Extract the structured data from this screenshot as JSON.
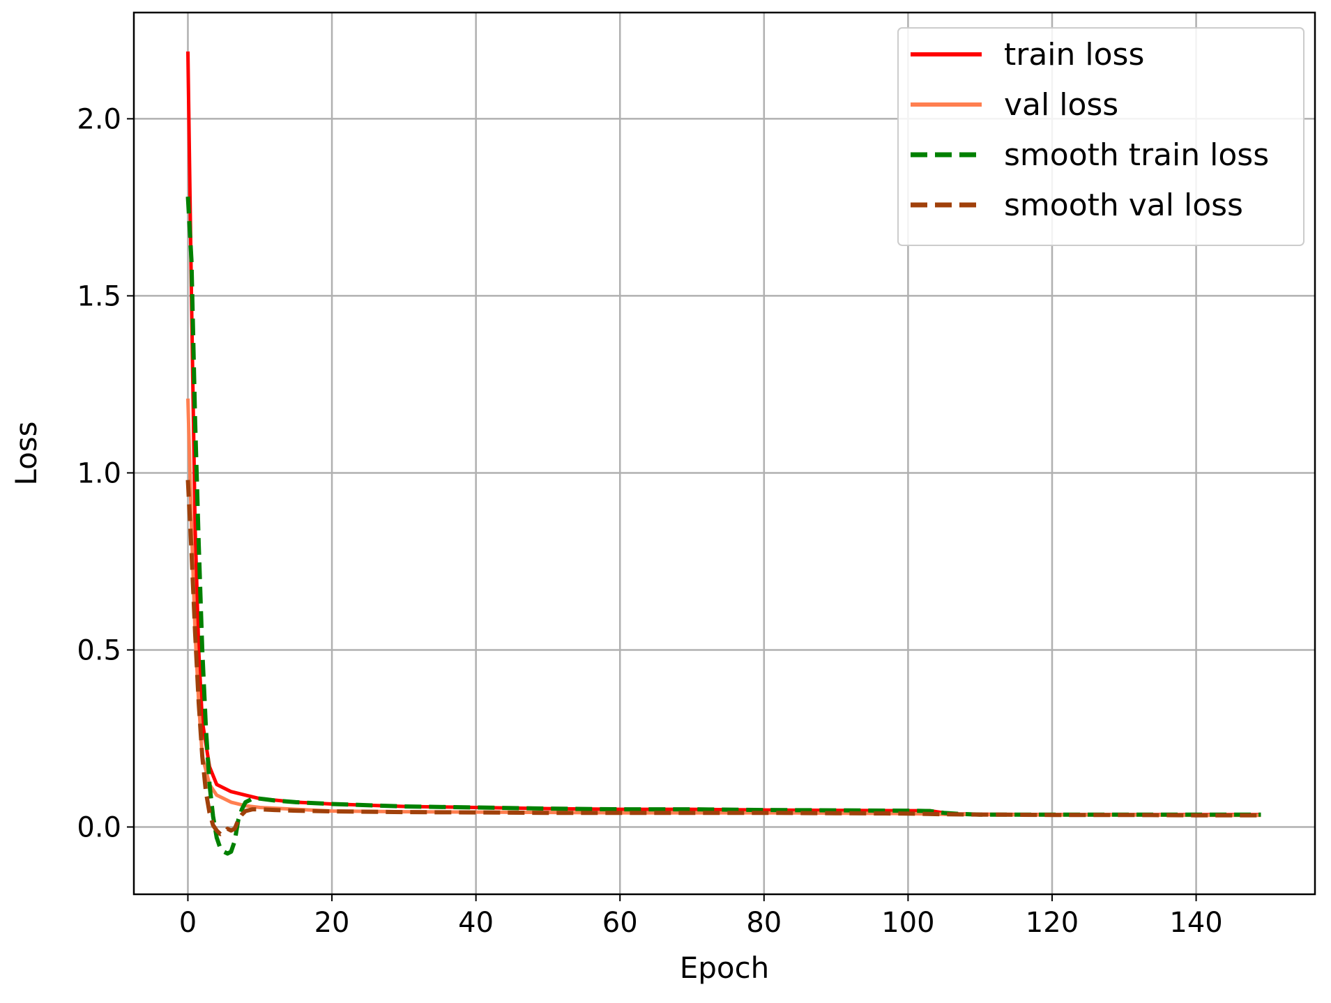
{
  "chart_data": {
    "type": "line",
    "title": "",
    "xlabel": "Epoch",
    "ylabel": "Loss",
    "xlim": [
      -7.5,
      156.5
    ],
    "ylim": [
      -0.19,
      2.3
    ],
    "xticks": [
      0,
      20,
      40,
      60,
      80,
      100,
      120,
      140
    ],
    "yticks": [
      0.0,
      0.5,
      1.0,
      1.5,
      2.0
    ],
    "xtick_labels": [
      "0",
      "20",
      "40",
      "60",
      "80",
      "100",
      "120",
      "140"
    ],
    "ytick_labels": [
      "0.0",
      "0.5",
      "1.0",
      "1.5",
      "2.0"
    ],
    "grid": true,
    "legend_position": "top-right",
    "series": [
      {
        "name": "train loss",
        "color": "#ff0000",
        "style": "solid",
        "x": [
          0,
          0.5,
          1,
          1.5,
          2,
          3,
          4,
          5,
          6,
          8,
          10,
          15,
          20,
          30,
          40,
          50,
          60,
          70,
          80,
          90,
          100,
          103,
          105,
          107,
          110,
          120,
          130,
          140,
          149
        ],
        "y": [
          2.19,
          1.5,
          0.85,
          0.5,
          0.3,
          0.17,
          0.12,
          0.11,
          0.1,
          0.09,
          0.08,
          0.07,
          0.065,
          0.058,
          0.055,
          0.052,
          0.05,
          0.05,
          0.048,
          0.047,
          0.046,
          0.046,
          0.04,
          0.037,
          0.036,
          0.035,
          0.035,
          0.035,
          0.035
        ]
      },
      {
        "name": "val loss",
        "color": "#ff7f50",
        "style": "solid",
        "x": [
          0,
          0.5,
          1,
          1.5,
          2,
          3,
          4,
          5,
          6,
          8,
          10,
          15,
          20,
          30,
          40,
          50,
          60,
          70,
          80,
          90,
          100,
          105,
          110,
          120,
          130,
          140,
          149
        ],
        "y": [
          1.21,
          0.85,
          0.55,
          0.35,
          0.2,
          0.12,
          0.09,
          0.08,
          0.07,
          0.06,
          0.055,
          0.05,
          0.045,
          0.043,
          0.042,
          0.041,
          0.04,
          0.04,
          0.04,
          0.039,
          0.038,
          0.036,
          0.035,
          0.034,
          0.034,
          0.033,
          0.033
        ]
      },
      {
        "name": "smooth train loss",
        "color": "#008000",
        "style": "dashed",
        "x": [
          0,
          0.5,
          1,
          1.5,
          2,
          2.5,
          3,
          3.5,
          4,
          4.5,
          5,
          5.5,
          6,
          6.5,
          7,
          7.5,
          8,
          9,
          10,
          12,
          15,
          20,
          30,
          40,
          50,
          60,
          70,
          80,
          90,
          100,
          103,
          105,
          107,
          110,
          120,
          130,
          140,
          149
        ],
        "y": [
          1.78,
          1.6,
          1.15,
          0.8,
          0.5,
          0.28,
          0.12,
          0.03,
          -0.03,
          -0.06,
          -0.07,
          -0.075,
          -0.07,
          -0.04,
          0.02,
          0.05,
          0.07,
          0.08,
          0.08,
          0.075,
          0.07,
          0.065,
          0.058,
          0.055,
          0.052,
          0.05,
          0.05,
          0.048,
          0.047,
          0.046,
          0.045,
          0.04,
          0.037,
          0.035,
          0.035,
          0.035,
          0.035,
          0.035
        ]
      },
      {
        "name": "smooth val loss",
        "color": "#a0400a",
        "style": "dashed",
        "x": [
          0,
          0.5,
          1,
          1.5,
          2,
          2.5,
          3,
          3.5,
          4,
          4.5,
          5,
          5.5,
          6,
          6.5,
          7,
          7.5,
          8,
          9,
          10,
          12,
          15,
          20,
          30,
          40,
          50,
          60,
          70,
          80,
          90,
          100,
          105,
          110,
          120,
          130,
          140,
          149
        ],
        "y": [
          0.98,
          0.78,
          0.55,
          0.35,
          0.2,
          0.1,
          0.04,
          0.005,
          -0.01,
          -0.02,
          -0.015,
          -0.005,
          -0.01,
          -0.005,
          0.02,
          0.035,
          0.045,
          0.05,
          0.05,
          0.048,
          0.046,
          0.044,
          0.042,
          0.041,
          0.04,
          0.04,
          0.04,
          0.04,
          0.039,
          0.038,
          0.036,
          0.035,
          0.034,
          0.034,
          0.033,
          0.033
        ]
      }
    ]
  }
}
